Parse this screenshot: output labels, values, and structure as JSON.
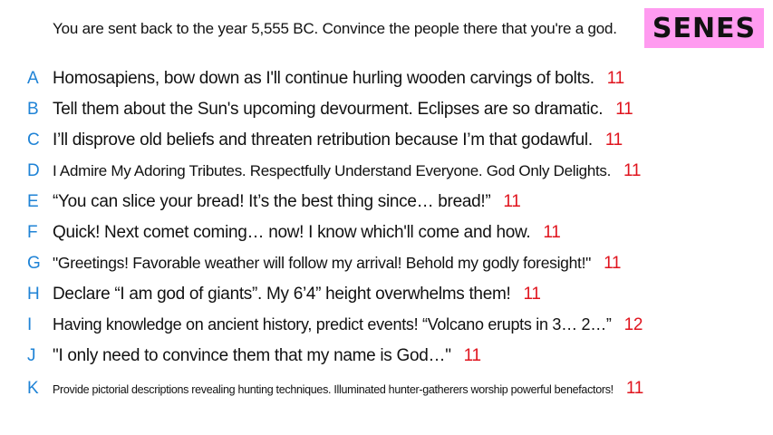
{
  "prompt": "You are sent back to the year 5,555 BC. Convince the people there that you're a god.",
  "badge": "SENES",
  "colors": {
    "letter": "#1f83d6",
    "score": "#e0141e",
    "badge_bg": "#ff9bf0"
  },
  "answers": [
    {
      "letter": "A",
      "text": "Homosapiens, bow down as I'll continue hurling wooden carvings of bolts.",
      "score": "11"
    },
    {
      "letter": "B",
      "text": "Tell them about the Sun's upcoming devourment. Eclipses are so dramatic.",
      "score": "11"
    },
    {
      "letter": "C",
      "text": "I’ll disprove old beliefs and threaten retribution because I’m that godawful.",
      "score": "11"
    },
    {
      "letter": "D",
      "text": "I Admire My Adoring Tributes. Respectfully Understand Everyone. God Only Delights.",
      "score": "11"
    },
    {
      "letter": "E",
      "text": "“You can slice your bread! It’s the best thing since… bread!”",
      "score": "11"
    },
    {
      "letter": "F",
      "text": "Quick! Next comet coming… now! I know which'll come and how.",
      "score": "11"
    },
    {
      "letter": "G",
      "text": "\"Greetings! Favorable weather will follow my arrival! Behold my godly foresight!\"",
      "score": "11"
    },
    {
      "letter": "H",
      "text": "Declare “I am god of giants”. My 6’4” height overwhelms them!",
      "score": "11"
    },
    {
      "letter": "I",
      "text": "Having knowledge on ancient history, predict events! “Volcano erupts in 3… 2…”",
      "score": "12"
    },
    {
      "letter": "J",
      "text": "\"I only need to convince them that my name is God…\"",
      "score": "11"
    },
    {
      "letter": "K",
      "text": "Provide pictorial descriptions revealing hunting techniques. Illuminated hunter-gatherers worship powerful benefactors!",
      "score": "11"
    }
  ]
}
